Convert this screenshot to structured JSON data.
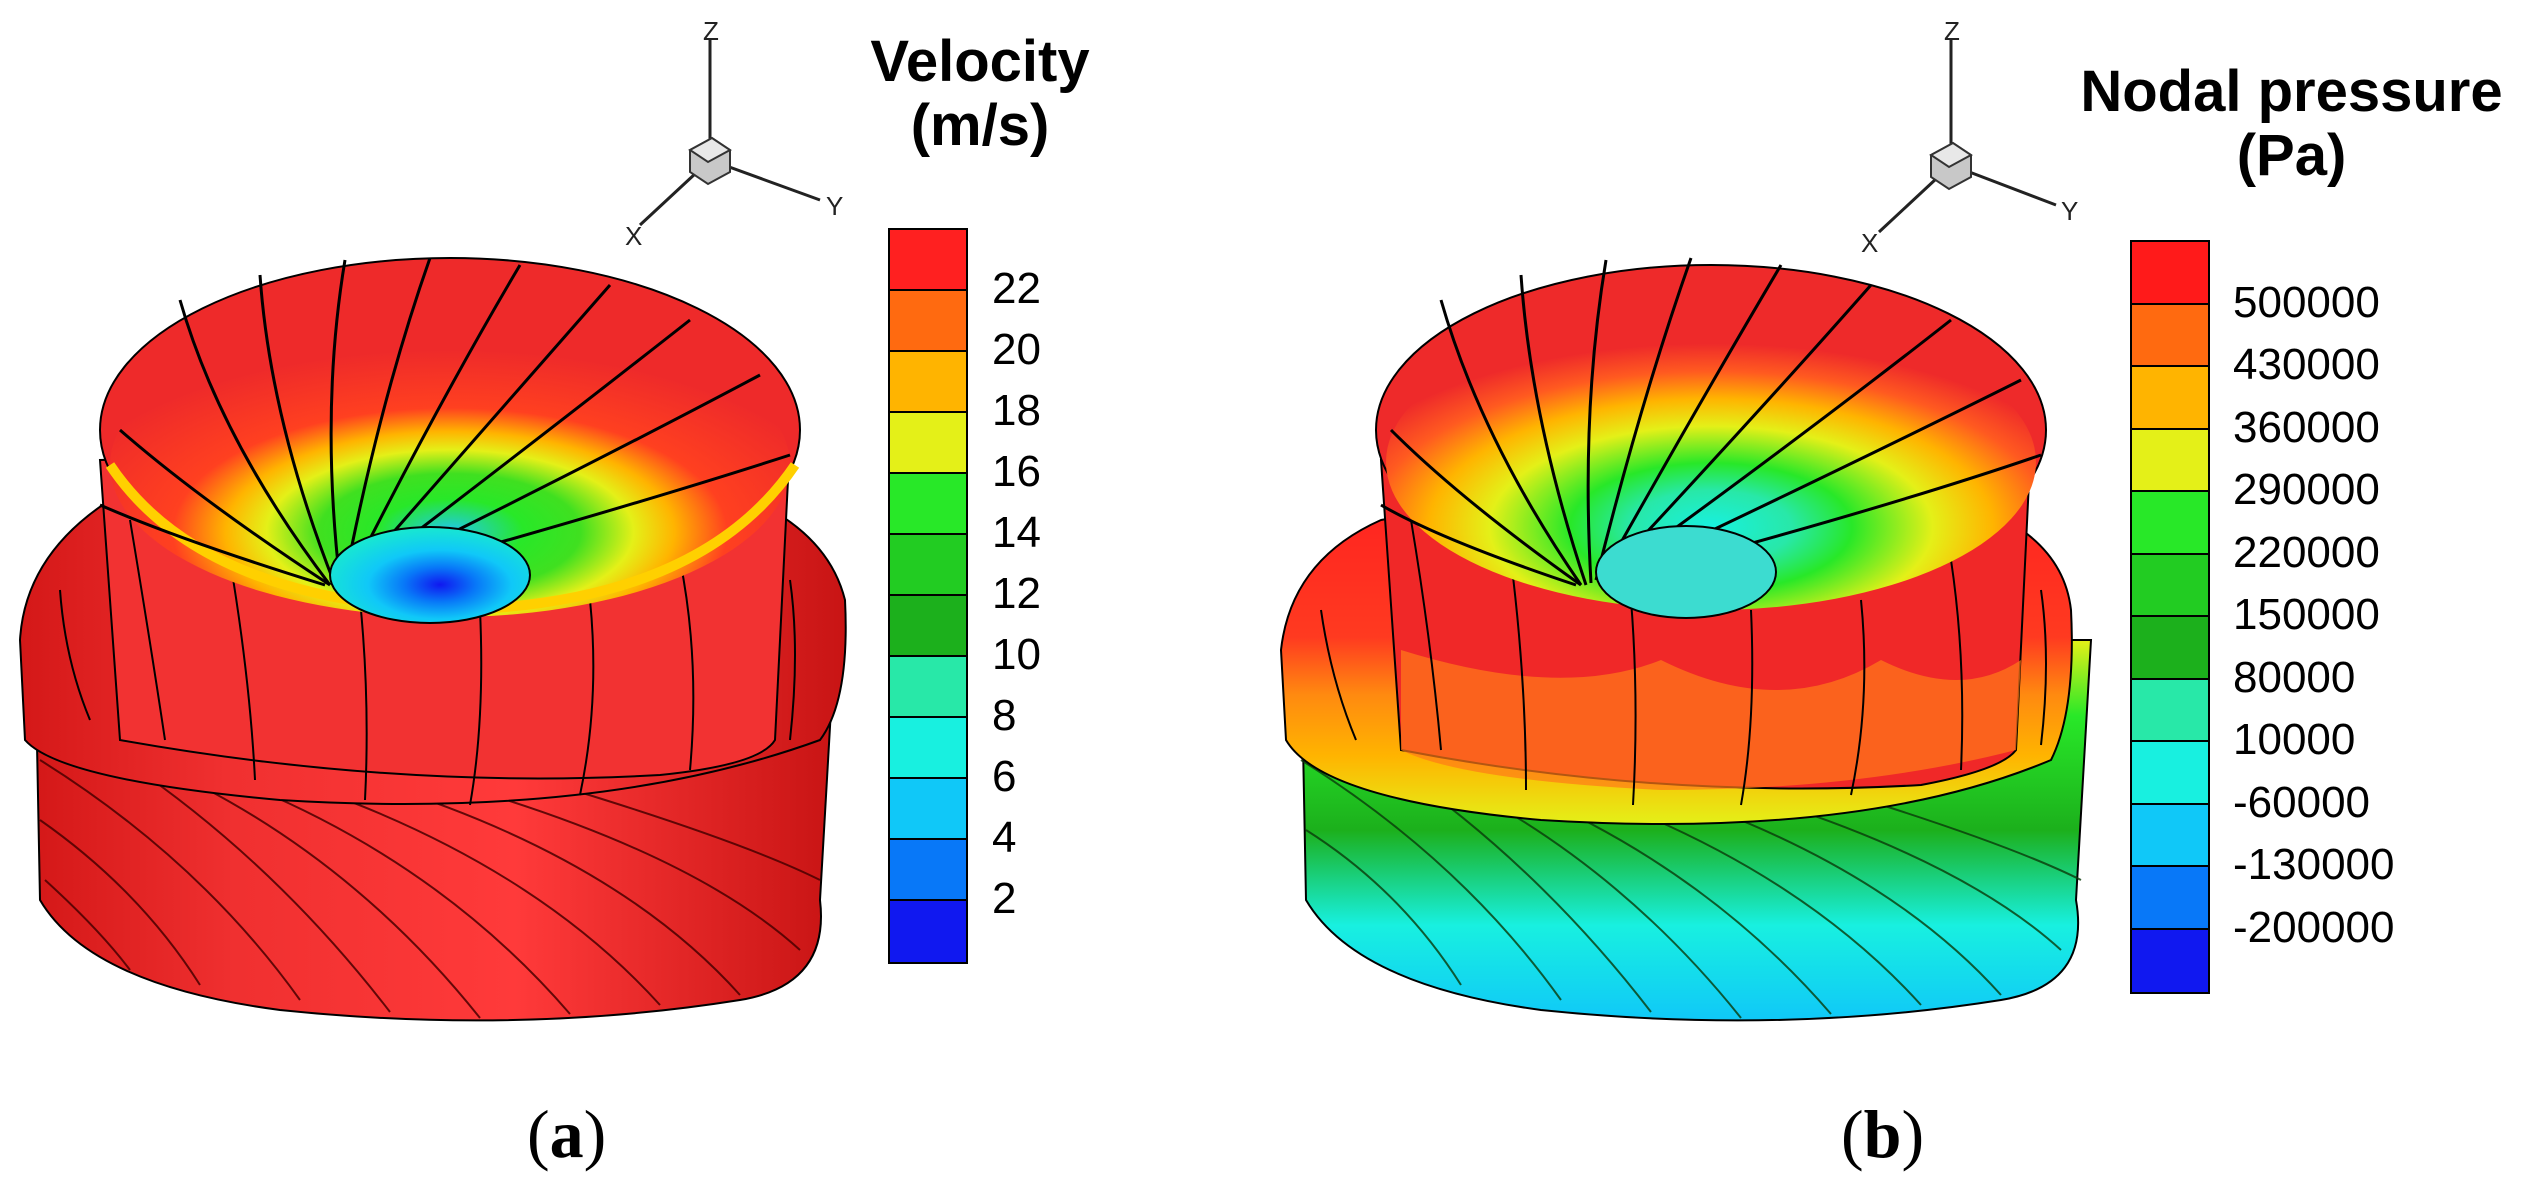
{
  "panels": [
    {
      "id": "a",
      "caption_letter": "a",
      "legend": {
        "title_line1": "Velocity",
        "title_line2": "(m/s)",
        "ticks": [
          "22",
          "20",
          "18",
          "16",
          "14",
          "12",
          "10",
          "8",
          "6",
          "4",
          "2"
        ],
        "colors": [
          "#ff2020",
          "#ff6a10",
          "#ffb400",
          "#e4f018",
          "#28e828",
          "#22cc22",
          "#1cb01c",
          "#28e8a8",
          "#18f0e0",
          "#10c8f8",
          "#0878f8",
          "#1018f0"
        ]
      },
      "axes": {
        "x": "X",
        "y": "Y",
        "z": "Z"
      }
    },
    {
      "id": "b",
      "caption_letter": "b",
      "legend": {
        "title_line1": "Nodal pressure",
        "title_line2": "(Pa)",
        "ticks": [
          "500000",
          "430000",
          "360000",
          "290000",
          "220000",
          "150000",
          "80000",
          "10000",
          "-60000",
          "-130000",
          "-200000"
        ],
        "colors": [
          "#ff1a1a",
          "#ff6a10",
          "#ffb400",
          "#e4f018",
          "#28e828",
          "#22cc22",
          "#1cb01c",
          "#28e8a8",
          "#18f0e0",
          "#10c8f8",
          "#0878f8",
          "#1018f0"
        ]
      },
      "axes": {
        "x": "X",
        "y": "Y",
        "z": "Z"
      }
    }
  ]
}
